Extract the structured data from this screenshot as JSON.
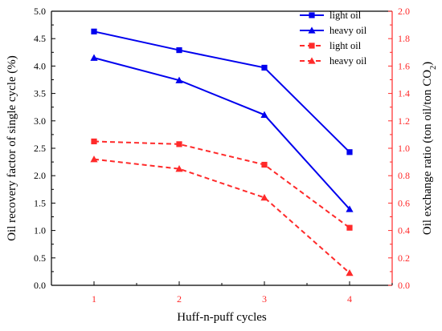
{
  "chart_data": {
    "type": "line",
    "x": [
      1,
      2,
      3,
      4
    ],
    "xlabel": "Huff-n-puff cycles",
    "ylabel_left": "Oil recovery factor of single cycle (%)",
    "ylabel_right": "Oil exchange ratio (ton oil/ton CO2)",
    "ylim_left": [
      0.0,
      5.0
    ],
    "ylim_right": [
      0.0,
      2.0
    ],
    "yticks_left": [
      "0.0",
      "0.5",
      "1.0",
      "1.5",
      "2.0",
      "2.5",
      "3.0",
      "3.5",
      "4.0",
      "4.5",
      "5.0"
    ],
    "yticks_right": [
      "0.0",
      "0.2",
      "0.4",
      "0.6",
      "0.8",
      "1.0",
      "1.2",
      "1.4",
      "1.6",
      "1.8",
      "2.0"
    ],
    "xticks": [
      "1",
      "2",
      "3",
      "4"
    ],
    "grid": false,
    "legend_position": "top-right",
    "series": [
      {
        "name": "light oil",
        "axis": "left",
        "values": [
          4.63,
          4.29,
          3.97,
          2.43
        ],
        "color": "#0000ee",
        "dash": "solid",
        "marker": "square"
      },
      {
        "name": "heavy oil",
        "axis": "left",
        "values": [
          4.15,
          3.74,
          3.11,
          1.39
        ],
        "color": "#0000ee",
        "dash": "solid",
        "marker": "triangle"
      },
      {
        "name": "light oil",
        "axis": "right",
        "values": [
          1.05,
          1.03,
          0.88,
          0.42
        ],
        "color": "#ff2a2a",
        "dash": "dashed",
        "marker": "square"
      },
      {
        "name": "heavy oil",
        "axis": "right",
        "values": [
          0.92,
          0.85,
          0.64,
          0.09
        ],
        "color": "#ff2a2a",
        "dash": "dashed",
        "marker": "triangle"
      }
    ],
    "colors": {
      "left_axis": "#000000",
      "right_axis": "#ff2a2a",
      "x_ticks": "#ff2a2a"
    }
  }
}
